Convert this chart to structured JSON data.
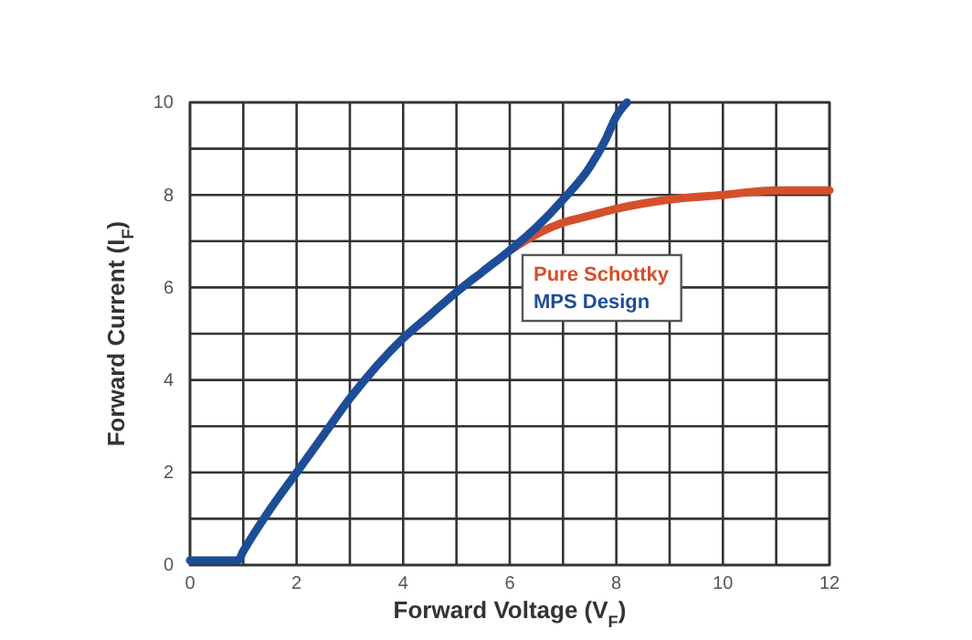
{
  "chart_data": {
    "type": "line",
    "xlabel": "Forward Voltage (V$_{F}$)",
    "ylabel": "Forward Current (I$_{F}$)",
    "xlim": [
      0,
      12
    ],
    "ylim": [
      0,
      10
    ],
    "xticks": [
      0,
      {
        "value": 1,
        "label": null
      },
      2,
      {
        "value": 3,
        "label": null
      },
      4,
      {
        "value": 5,
        "label": null
      },
      6,
      {
        "value": 7,
        "label": null
      },
      8,
      {
        "value": 9,
        "label": null
      },
      10,
      {
        "value": 11,
        "label": null
      },
      12
    ],
    "yticks": [
      0,
      {
        "value": 1,
        "label": null
      },
      2,
      {
        "value": 3,
        "label": null
      },
      4,
      {
        "value": 5,
        "label": null
      },
      6,
      {
        "value": 7,
        "label": null
      },
      8,
      {
        "value": 9,
        "label": null
      },
      10
    ],
    "grid": true,
    "legend": "right",
    "marker": "none",
    "line_style": "solid",
    "series": [
      {
        "name": "Pure Schottky",
        "color": "#d4502a",
        "x": [
          6,
          6.5,
          7,
          7.5,
          8,
          9,
          10,
          11,
          12
        ],
        "values": [
          6.8,
          7.15,
          7.4,
          7.55,
          7.7,
          7.9,
          8.0,
          8.1,
          8.1
        ]
      },
      {
        "name": "MPS Design",
        "color": "#1e4d97",
        "x": [
          0,
          0.9,
          1,
          1.5,
          2,
          2.5,
          3,
          3.5,
          4,
          4.5,
          5,
          5.5,
          6,
          6.5,
          7,
          7.5,
          7.8,
          8,
          8.2
        ],
        "values": [
          0.1,
          0.1,
          0.3,
          1.2,
          2,
          2.8,
          3.6,
          4.3,
          4.9,
          5.4,
          5.9,
          6.35,
          6.8,
          7.3,
          7.9,
          8.6,
          9.2,
          9.7,
          10
        ]
      }
    ]
  }
}
